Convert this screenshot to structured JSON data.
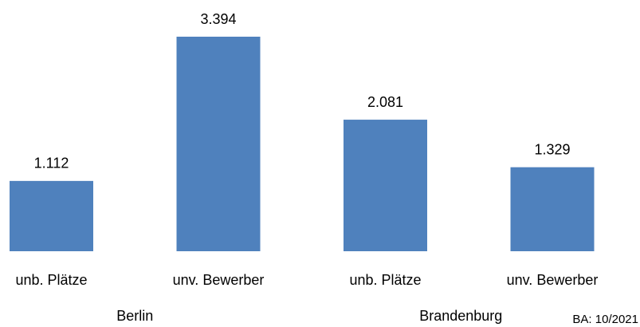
{
  "chart_data": {
    "type": "bar",
    "categories": [
      "unb. Plätze",
      "unv. Bewerber",
      "unb. Plätze",
      "unv. Bewerber"
    ],
    "values": [
      1112,
      3394,
      2081,
      1329
    ],
    "value_labels": [
      "1.112",
      "3.394",
      "2.081",
      "1.329"
    ],
    "color": "#4f81bd",
    "groups": [
      "Berlin",
      "Brandenburg"
    ],
    "note": "BA: 10/2021"
  }
}
